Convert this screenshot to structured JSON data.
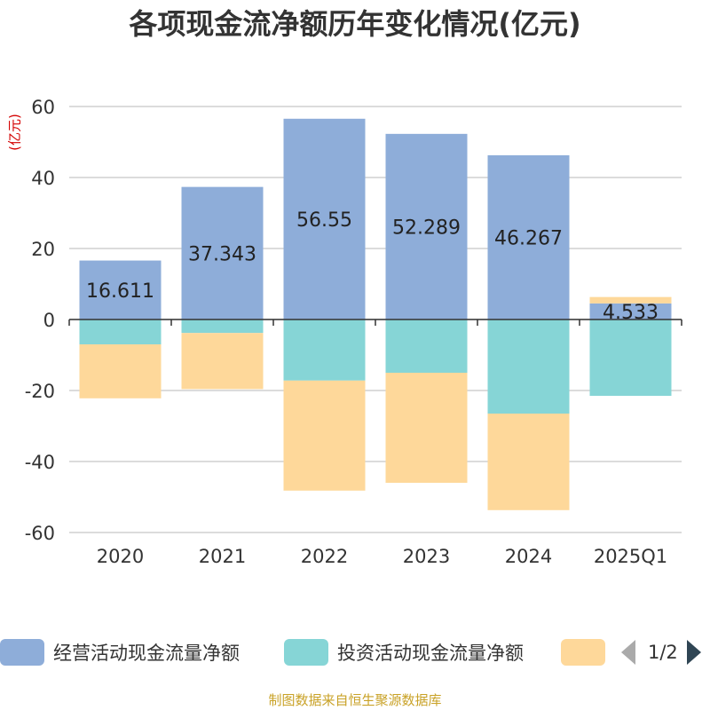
{
  "title": "各项现金流净额历年变化情况(亿元)",
  "unit_label": "(亿元)",
  "source": "制图数据来自恒生聚源数据库",
  "legend": {
    "items": [
      {
        "label": "经营活动现金流量净额",
        "color": "#8eadd9"
      },
      {
        "label": "投资活动现金流量净额",
        "color": "#86d5d6"
      },
      {
        "label": "",
        "color": "#fed89a"
      }
    ],
    "page_text": "1/2"
  },
  "chart_data": {
    "type": "bar",
    "stacked": true,
    "categories": [
      "2020",
      "2021",
      "2022",
      "2023",
      "2024",
      "2025Q1"
    ],
    "ylim": [
      -60,
      60
    ],
    "yticks": [
      60,
      40,
      20,
      0,
      -20,
      -40,
      -60
    ],
    "grid": true,
    "legend_position": "bottom",
    "series": [
      {
        "name": "经营活动现金流量净额",
        "color": "#8eadd9",
        "values": [
          16.611,
          37.343,
          56.55,
          52.289,
          46.267,
          4.533
        ],
        "labels": [
          "16.611",
          "37.343",
          "56.55",
          "52.289",
          "46.267",
          "4.533"
        ]
      },
      {
        "name": "投资活动现金流量净额",
        "color": "#86d5d6",
        "values": [
          -7.0,
          -3.8,
          -17.2,
          -15.0,
          -26.5,
          -21.5
        ]
      },
      {
        "color": "#fed89a",
        "values": [
          -15.2,
          -15.8,
          -31.0,
          -31.0,
          -27.2,
          1.8
        ]
      }
    ]
  }
}
